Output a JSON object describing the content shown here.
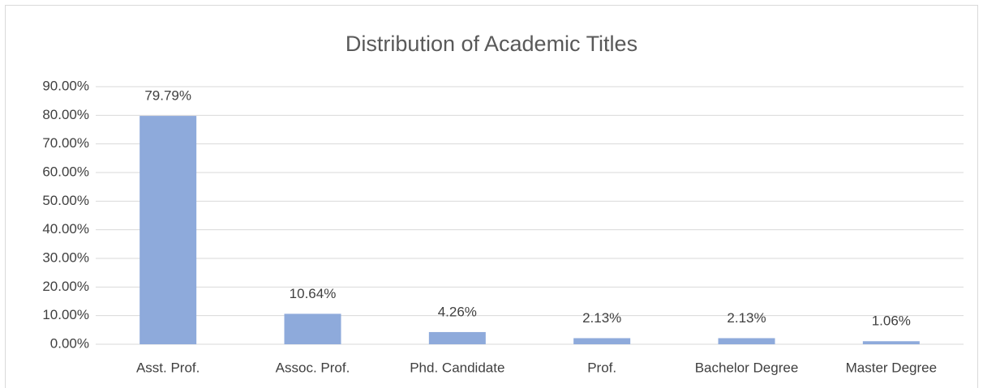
{
  "chart_data": {
    "type": "bar",
    "title": "Distribution of Academic Titles",
    "categories": [
      "Asst. Prof.",
      "Assoc. Prof.",
      "Phd. Candidate",
      "Prof.",
      "Bachelor Degree",
      "Master Degree"
    ],
    "values": [
      79.79,
      10.64,
      4.26,
      2.13,
      2.13,
      1.06
    ],
    "value_labels": [
      "79.79%",
      "10.64%",
      "4.26%",
      "2.13%",
      "2.13%",
      "1.06%"
    ],
    "color": "#8eaadb",
    "ylim": [
      0,
      90
    ],
    "yticks": [
      {
        "value": 0,
        "label": "0.00%"
      },
      {
        "value": 10,
        "label": "10.00%"
      },
      {
        "value": 20,
        "label": "20.00%"
      },
      {
        "value": 30,
        "label": "30.00%"
      },
      {
        "value": 40,
        "label": "40.00%"
      },
      {
        "value": 50,
        "label": "50.00%"
      },
      {
        "value": 60,
        "label": "60.00%"
      },
      {
        "value": 70,
        "label": "70.00%"
      },
      {
        "value": 80,
        "label": "80.00%"
      },
      {
        "value": 90,
        "label": "90.00%"
      }
    ],
    "grid": true
  }
}
